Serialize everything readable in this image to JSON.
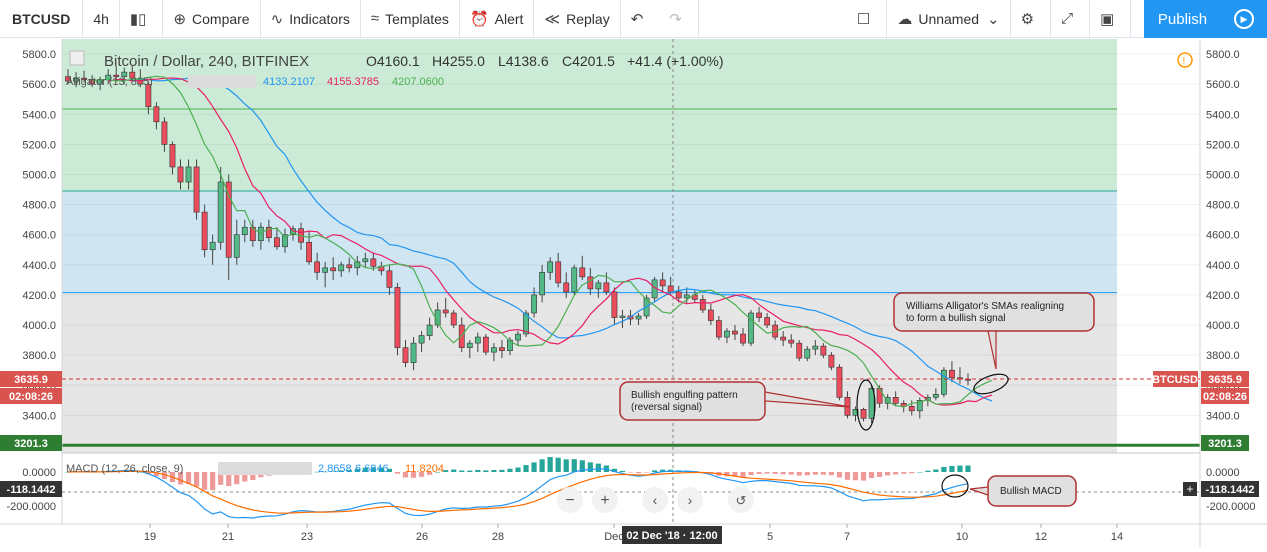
{
  "toolbar": {
    "symbol": "BTCUSD",
    "interval": "4h",
    "compare": "Compare",
    "indicators": "Indicators",
    "templates": "Templates",
    "alert": "Alert",
    "replay": "Replay",
    "layout_name": "Unnamed",
    "publish": "Publish"
  },
  "legend": {
    "title": "Bitcoin / Dollar, 240, BITFINEX",
    "open": "O4160.1",
    "high": "H4255.0",
    "low": "L4138.6",
    "close": "C4201.5",
    "change": "+41.4 (+1.00%)",
    "alligator_label": "Alligator (13, 8, 5)",
    "jaw_value": "4133.2107",
    "teeth_value": "4155.3785",
    "lips_value": "4207.0600",
    "macd_label": "MACD (12, 26, close, 9)",
    "macd_v1": "2.8658",
    "macd_v2": "6.6846",
    "macd_v3": "11.8204"
  },
  "badges": {
    "last_price": "3635.9",
    "countdown": "02:08:26",
    "support": "3201.3",
    "symbol_tag": "BTCUSD",
    "macd_value": "-118.1442",
    "crosshair_date": "02 Dec '18 · 12:00"
  },
  "annotations": {
    "alligator_note_line1": "Williams Alligator's SMAs realigning",
    "alligator_note_line2": "to form a bullish signal",
    "engulfing_line1": "Bullish engulfing pattern",
    "engulfing_line2": "(reversal signal)",
    "macd_note": "Bullish MACD"
  },
  "colors": {
    "up": "#53b987",
    "down": "#eb4d5c",
    "jaw": "#2196f3",
    "teeth": "#e91e63",
    "lips": "#4caf50",
    "macd": "#2196f3",
    "signal": "#ff6d00",
    "support": "#2e7d32",
    "price_line": "#d32f2f"
  },
  "chart_data": {
    "type": "candlestick",
    "ylim": [
      3150,
      5900
    ],
    "y_ticks": [
      3400,
      3600,
      3800,
      4000,
      4200,
      4400,
      4600,
      4800,
      5000,
      5200,
      5400,
      5600,
      5800
    ],
    "x_ticks": [
      "19",
      "21",
      "23",
      "26",
      "28",
      "Dec",
      "5",
      "7",
      "10",
      "12",
      "14"
    ],
    "bands": [
      {
        "from": 4210,
        "to": 5900,
        "color": "#ccebd6"
      },
      {
        "from": 4210,
        "to": 4890,
        "color": "#cfe6f2"
      },
      {
        "from": 3150,
        "to": 4210,
        "color": "#e6e6e6"
      }
    ],
    "levels": [
      5435,
      4890,
      4215
    ],
    "support_level": 3201.3,
    "last_price": 3635.9,
    "candles": [
      [
        5650,
        5700,
        5600,
        5620
      ],
      [
        5620,
        5680,
        5580,
        5640
      ],
      [
        5640,
        5690,
        5610,
        5630
      ],
      [
        5630,
        5660,
        5580,
        5600
      ],
      [
        5600,
        5650,
        5560,
        5630
      ],
      [
        5630,
        5700,
        5600,
        5660
      ],
      [
        5660,
        5720,
        5620,
        5650
      ],
      [
        5650,
        5710,
        5600,
        5680
      ],
      [
        5680,
        5720,
        5620,
        5640
      ],
      [
        5640,
        5700,
        5580,
        5600
      ],
      [
        5600,
        5620,
        5400,
        5450
      ],
      [
        5450,
        5480,
        5300,
        5350
      ],
      [
        5350,
        5380,
        5150,
        5200
      ],
      [
        5200,
        5220,
        5000,
        5050
      ],
      [
        5050,
        5100,
        4900,
        4950
      ],
      [
        4950,
        5100,
        4900,
        5050
      ],
      [
        5050,
        5100,
        4700,
        4750
      ],
      [
        4750,
        4800,
        4450,
        4500
      ],
      [
        4500,
        4600,
        4400,
        4550
      ],
      [
        4550,
        5050,
        4500,
        4950
      ],
      [
        4950,
        5000,
        4300,
        4450
      ],
      [
        4450,
        4700,
        4400,
        4600
      ],
      [
        4600,
        4700,
        4550,
        4650
      ],
      [
        4650,
        4700,
        4520,
        4560
      ],
      [
        4560,
        4680,
        4500,
        4650
      ],
      [
        4650,
        4700,
        4550,
        4580
      ],
      [
        4580,
        4650,
        4500,
        4520
      ],
      [
        4520,
        4640,
        4480,
        4600
      ],
      [
        4600,
        4660,
        4560,
        4640
      ],
      [
        4640,
        4680,
        4500,
        4550
      ],
      [
        4550,
        4620,
        4400,
        4420
      ],
      [
        4420,
        4480,
        4300,
        4350
      ],
      [
        4350,
        4420,
        4250,
        4380
      ],
      [
        4380,
        4450,
        4300,
        4360
      ],
      [
        4360,
        4420,
        4320,
        4400
      ],
      [
        4400,
        4450,
        4350,
        4380
      ],
      [
        4380,
        4460,
        4330,
        4420
      ],
      [
        4420,
        4480,
        4380,
        4440
      ],
      [
        4440,
        4480,
        4360,
        4390
      ],
      [
        4390,
        4420,
        4330,
        4360
      ],
      [
        4360,
        4400,
        4200,
        4250
      ],
      [
        4250,
        4280,
        3800,
        3850
      ],
      [
        3850,
        3900,
        3720,
        3750
      ],
      [
        3750,
        3920,
        3700,
        3880
      ],
      [
        3880,
        3960,
        3820,
        3930
      ],
      [
        3930,
        4050,
        3900,
        4000
      ],
      [
        4000,
        4150,
        3980,
        4100
      ],
      [
        4100,
        4180,
        4050,
        4080
      ],
      [
        4080,
        4100,
        3980,
        4000
      ],
      [
        4000,
        4050,
        3820,
        3850
      ],
      [
        3850,
        3900,
        3780,
        3880
      ],
      [
        3880,
        3950,
        3820,
        3920
      ],
      [
        3920,
        3940,
        3800,
        3820
      ],
      [
        3820,
        3880,
        3760,
        3850
      ],
      [
        3850,
        3900,
        3780,
        3830
      ],
      [
        3830,
        3920,
        3800,
        3900
      ],
      [
        3900,
        3960,
        3860,
        3940
      ],
      [
        3940,
        4100,
        3920,
        4080
      ],
      [
        4080,
        4250,
        4050,
        4200
      ],
      [
        4200,
        4400,
        4150,
        4350
      ],
      [
        4350,
        4450,
        4300,
        4420
      ],
      [
        4420,
        4480,
        4250,
        4280
      ],
      [
        4280,
        4350,
        4180,
        4220
      ],
      [
        4220,
        4400,
        4200,
        4380
      ],
      [
        4380,
        4460,
        4300,
        4320
      ],
      [
        4320,
        4380,
        4200,
        4240
      ],
      [
        4240,
        4300,
        4180,
        4280
      ],
      [
        4280,
        4350,
        4200,
        4220
      ],
      [
        4220,
        4250,
        4000,
        4050
      ],
      [
        4050,
        4100,
        3980,
        4060
      ],
      [
        4060,
        4100,
        4000,
        4040
      ],
      [
        4040,
        4080,
        4000,
        4060
      ],
      [
        4060,
        4200,
        4040,
        4180
      ],
      [
        4180,
        4320,
        4150,
        4300
      ],
      [
        4300,
        4350,
        4220,
        4260
      ],
      [
        4260,
        4320,
        4200,
        4220
      ],
      [
        4220,
        4260,
        4150,
        4180
      ],
      [
        4180,
        4250,
        4140,
        4200
      ],
      [
        4200,
        4230,
        4150,
        4170
      ],
      [
        4170,
        4200,
        4080,
        4100
      ],
      [
        4100,
        4140,
        4000,
        4030
      ],
      [
        4030,
        4060,
        3900,
        3920
      ],
      [
        3920,
        3980,
        3880,
        3960
      ],
      [
        3960,
        4000,
        3900,
        3940
      ],
      [
        3940,
        3980,
        3860,
        3880
      ],
      [
        3880,
        4100,
        3860,
        4080
      ],
      [
        4080,
        4120,
        4020,
        4050
      ],
      [
        4050,
        4080,
        3980,
        4000
      ],
      [
        4000,
        4030,
        3900,
        3920
      ],
      [
        3920,
        3960,
        3860,
        3900
      ],
      [
        3900,
        3940,
        3850,
        3880
      ],
      [
        3880,
        3900,
        3760,
        3780
      ],
      [
        3780,
        3860,
        3760,
        3840
      ],
      [
        3840,
        3900,
        3800,
        3860
      ],
      [
        3860,
        3880,
        3780,
        3800
      ],
      [
        3800,
        3820,
        3700,
        3720
      ],
      [
        3720,
        3740,
        3500,
        3520
      ],
      [
        3520,
        3560,
        3380,
        3400
      ],
      [
        3400,
        3460,
        3360,
        3440
      ],
      [
        3440,
        3450,
        3360,
        3380
      ],
      [
        3380,
        3600,
        3350,
        3580
      ],
      [
        3580,
        3600,
        3450,
        3480
      ],
      [
        3480,
        3540,
        3440,
        3520
      ],
      [
        3520,
        3560,
        3460,
        3480
      ],
      [
        3480,
        3500,
        3420,
        3460
      ],
      [
        3460,
        3500,
        3400,
        3430
      ],
      [
        3430,
        3520,
        3380,
        3500
      ],
      [
        3500,
        3540,
        3460,
        3520
      ],
      [
        3520,
        3580,
        3500,
        3540
      ],
      [
        3540,
        3720,
        3520,
        3700
      ],
      [
        3700,
        3760,
        3620,
        3650
      ],
      [
        3650,
        3720,
        3610,
        3640
      ],
      [
        3640,
        3680,
        3600,
        3636
      ]
    ],
    "macd": {
      "ylim": [
        -300,
        100
      ],
      "y_ticks": [
        0,
        -200
      ]
    }
  }
}
